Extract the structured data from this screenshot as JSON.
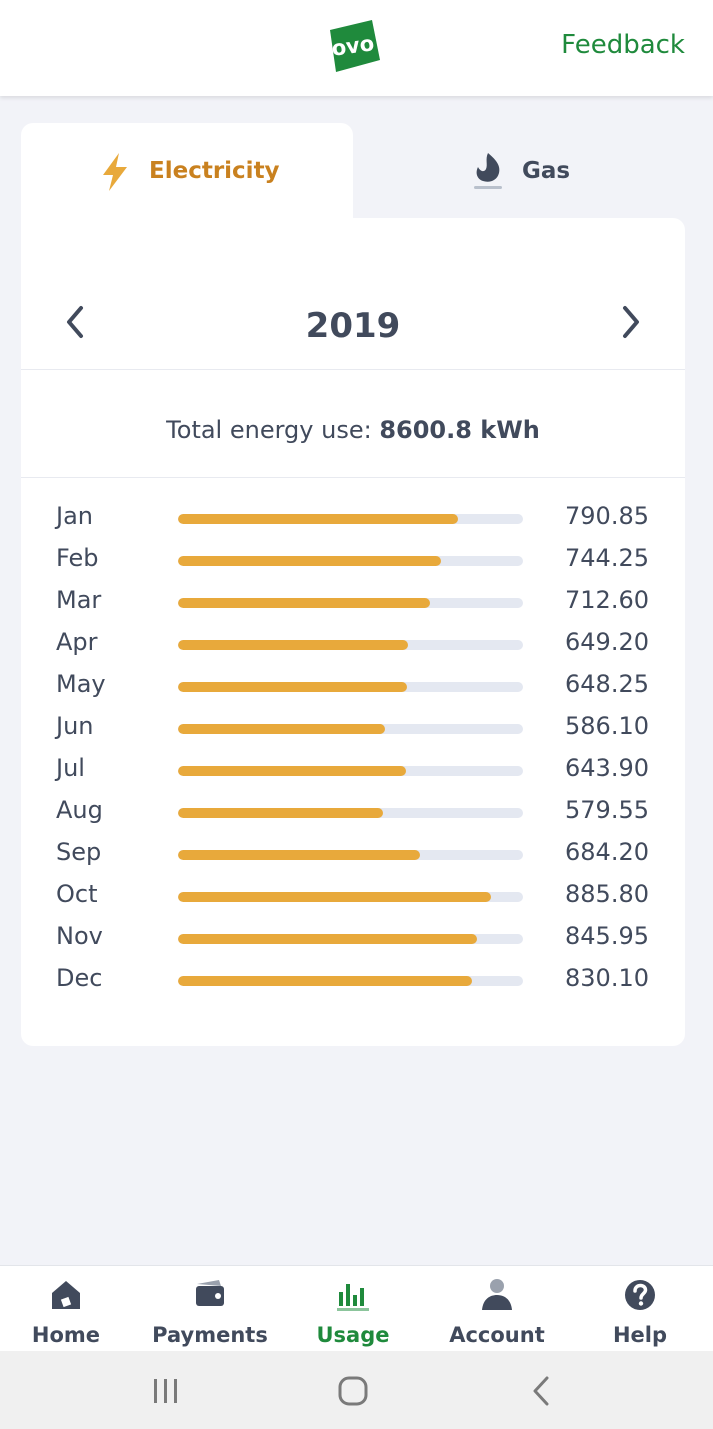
{
  "header": {
    "logo_text": "ovo",
    "feedback_label": "Feedback",
    "brand_color": "#1f8a3c"
  },
  "tabs": [
    {
      "label": "Electricity",
      "icon": "lightning-icon",
      "active": true,
      "color": "#c9811f"
    },
    {
      "label": "Gas",
      "icon": "flame-icon",
      "active": false,
      "color": "#414a5c"
    }
  ],
  "year_nav": {
    "year": "2019",
    "prev_icon": "chevron-left-icon",
    "next_icon": "chevron-right-icon"
  },
  "total": {
    "label": "Total energy use:",
    "value": "8600.8 kWh"
  },
  "chart_data": {
    "type": "bar",
    "orientation": "horizontal",
    "categories": [
      "Jan",
      "Feb",
      "Mar",
      "Apr",
      "May",
      "Jun",
      "Jul",
      "Aug",
      "Sep",
      "Oct",
      "Nov",
      "Dec"
    ],
    "values": [
      790.85,
      744.25,
      712.6,
      649.2,
      648.25,
      586.1,
      643.9,
      579.55,
      684.2,
      885.8,
      845.95,
      830.1
    ],
    "value_labels": [
      "790.85",
      "744.25",
      "712.60",
      "649.20",
      "648.25",
      "586.10",
      "643.90",
      "579.55",
      "684.20",
      "885.80",
      "845.95",
      "830.10"
    ],
    "xlim": [
      0,
      975
    ],
    "bar_color": "#e8a93b",
    "track_color": "#e4e8f1"
  },
  "bottom_nav": [
    {
      "label": "Home",
      "icon": "home-icon",
      "active": false
    },
    {
      "label": "Payments",
      "icon": "wallet-icon",
      "active": false
    },
    {
      "label": "Usage",
      "icon": "bar-chart-icon",
      "active": true
    },
    {
      "label": "Account",
      "icon": "person-icon",
      "active": false
    },
    {
      "label": "Help",
      "icon": "help-icon",
      "active": false
    }
  ],
  "system_nav": [
    "recents-icon",
    "home-button-icon",
    "back-icon"
  ]
}
